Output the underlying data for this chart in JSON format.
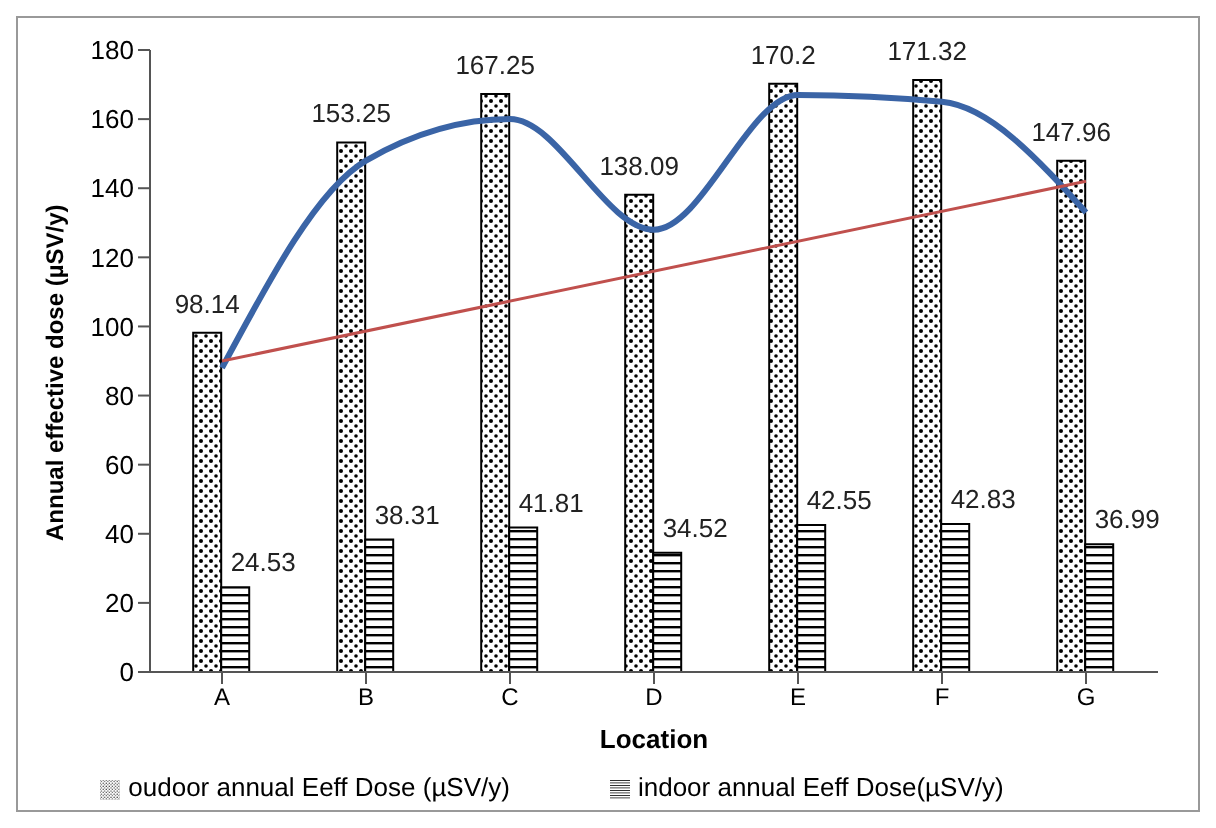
{
  "chart_data": {
    "type": "bar",
    "xlabel": "Location",
    "ylabel": "Annual effective dose (µSV/y)",
    "categories": [
      "A",
      "B",
      "C",
      "D",
      "E",
      "F",
      "G"
    ],
    "series": [
      {
        "name": "oudoor annual Eeff  Dose (µSV/y)",
        "color": "#000000",
        "values": [
          98.14,
          153.25,
          167.25,
          138.09,
          170.2,
          171.32,
          147.96
        ],
        "value_labels": [
          "98.14",
          "153.25",
          "167.25",
          "138.09",
          "170.2",
          "171.32",
          "147.96"
        ]
      },
      {
        "name": "indoor annual Eeff Dose(µSV/y)",
        "color": "#000000",
        "values": [
          24.53,
          38.31,
          41.81,
          34.52,
          42.55,
          42.83,
          36.99
        ],
        "value_labels": [
          "24.53",
          "38.31",
          "41.81",
          "34.52",
          "42.55",
          "42.83",
          "36.99"
        ]
      },
      {
        "type": "line",
        "color": "#3a64a6",
        "x": [
          "A",
          "B",
          "C",
          "D",
          "E",
          "F",
          "G"
        ],
        "values": [
          88,
          148,
          160,
          128,
          167,
          165,
          133
        ]
      },
      {
        "type": "line",
        "color": "#c0504d",
        "x": [
          "A",
          "G"
        ],
        "values": [
          90,
          142
        ]
      }
    ],
    "ylim": [
      0,
      180
    ],
    "yticks": [
      0,
      20,
      40,
      60,
      80,
      100,
      120,
      140,
      160,
      180
    ],
    "legend": "bottom",
    "marker": "none"
  }
}
